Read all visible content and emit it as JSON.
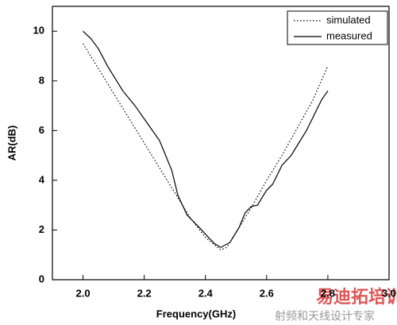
{
  "chart_data": {
    "type": "line",
    "xlabel": "Frequency(GHz)",
    "ylabel": "AR(dB)",
    "xlim": [
      1.9,
      3.0
    ],
    "ylim": [
      0,
      11
    ],
    "xticks": [
      {
        "value": 2.0,
        "label": "2.0"
      },
      {
        "value": 2.2,
        "label": "2.2"
      },
      {
        "value": 2.4,
        "label": "2.4"
      },
      {
        "value": 2.6,
        "label": "2.6"
      },
      {
        "value": 2.8,
        "label": "2.8"
      },
      {
        "value": 3.0,
        "label": "3.0"
      }
    ],
    "yticks": [
      0,
      2,
      4,
      6,
      8,
      10
    ],
    "legend": "top-right",
    "series": [
      {
        "name": "simulated",
        "color": "#000000",
        "dash": "dotted",
        "x": [
          2.0,
          2.05,
          2.1,
          2.15,
          2.2,
          2.25,
          2.3,
          2.35,
          2.4,
          2.45,
          2.47,
          2.5,
          2.55,
          2.6,
          2.65,
          2.7,
          2.75,
          2.8
        ],
        "values": [
          9.5,
          8.5,
          7.5,
          6.5,
          5.5,
          4.5,
          3.5,
          2.5,
          1.7,
          1.2,
          1.3,
          1.9,
          2.9,
          4.0,
          5.0,
          6.1,
          7.2,
          8.6
        ]
      },
      {
        "name": "measured",
        "color": "#000000",
        "dash": "solid",
        "x": [
          2.0,
          2.026,
          2.05,
          2.08,
          2.1,
          2.13,
          2.17,
          2.21,
          2.25,
          2.26,
          2.29,
          2.31,
          2.34,
          2.38,
          2.41,
          2.43,
          2.45,
          2.48,
          2.51,
          2.53,
          2.55,
          2.57,
          2.6,
          2.62,
          2.65,
          2.68,
          2.7,
          2.73,
          2.75,
          2.78,
          2.8
        ],
        "values": [
          10.0,
          9.7,
          9.3,
          8.6,
          8.2,
          7.6,
          7.0,
          6.3,
          5.6,
          5.3,
          4.4,
          3.4,
          2.6,
          2.1,
          1.7,
          1.45,
          1.3,
          1.5,
          2.1,
          2.7,
          2.95,
          3.0,
          3.6,
          3.85,
          4.6,
          5.0,
          5.4,
          6.0,
          6.5,
          7.25,
          7.6
        ]
      }
    ],
    "watermark": [
      "易迪拓培训",
      "射频和天线设计专家"
    ]
  }
}
